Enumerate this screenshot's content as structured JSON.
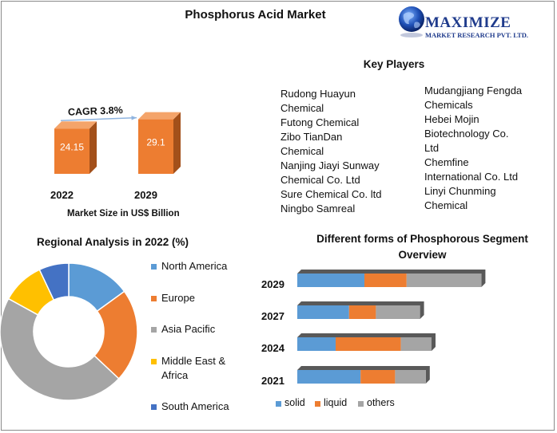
{
  "title": "Phosphorus Acid Market",
  "logo": {
    "name": "MAXIMIZE",
    "subtitle": "MARKET RESEARCH PVT. LTD."
  },
  "colors": {
    "orange": "#ed7d31",
    "orange_dark": "#a3501a",
    "blue": "#5b9bd5",
    "gray": "#a5a5a5",
    "yellow": "#ffc000",
    "darkblue": "#4472c4"
  },
  "chart_data": [
    {
      "type": "bar",
      "categories": [
        "2022",
        "2029"
      ],
      "values": [
        24.15,
        29.1
      ],
      "value_labels": [
        "24.15",
        "29.1"
      ],
      "xlabel": "Market Size in US$ Billion",
      "annotation": "CAGR 3.8%"
    },
    {
      "type": "pie",
      "title": "Regional Analysis in 2022 (%)",
      "labels": [
        "North America",
        "Europe",
        "Asia Pacific",
        "Middle East & Africa",
        "South America"
      ],
      "values": [
        15,
        22,
        46,
        10,
        7
      ],
      "colors": [
        "#5b9bd5",
        "#ed7d31",
        "#a5a5a5",
        "#ffc000",
        "#4472c4"
      ]
    },
    {
      "type": "bar",
      "orientation": "horizontal",
      "stacked": true,
      "title": "Different forms of Phosphorous Segment Overview",
      "categories": [
        "2029",
        "2027",
        "2024",
        "2021"
      ],
      "series": [
        {
          "name": "solid",
          "values": [
            35,
            27,
            20,
            33
          ],
          "color": "#5b9bd5"
        },
        {
          "name": "liquid",
          "values": [
            22,
            14,
            34,
            18
          ],
          "color": "#ed7d31"
        },
        {
          "name": "others",
          "values": [
            39,
            23,
            16,
            16
          ],
          "color": "#a5a5a5"
        }
      ]
    }
  ],
  "key_players": {
    "heading": "Key Players",
    "left": [
      "Rudong Huayun",
      "Chemical",
      "Futong Chemical",
      "Zibo TianDan",
      "Chemical",
      "Nanjing Jiayi Sunway",
      "Chemical Co. Ltd",
      "Sure Chemical Co. ltd",
      "Ningbo Samreal"
    ],
    "right": [
      "Mudangjiang Fengda",
      "Chemicals",
      "Hebei Mojin",
      "Biotechnology Co.",
      "Ltd",
      "Chemfine",
      "International Co. Ltd",
      "Linyi Chunming",
      "Chemical"
    ]
  },
  "region_legend": [
    {
      "lines": [
        "North America"
      ],
      "color": "#5b9bd5"
    },
    {
      "lines": [
        "Europe"
      ],
      "color": "#ed7d31"
    },
    {
      "lines": [
        "Asia Pacific"
      ],
      "color": "#a5a5a5"
    },
    {
      "lines": [
        "Middle East &",
        "Africa"
      ],
      "color": "#ffc000"
    },
    {
      "lines": [
        "South America"
      ],
      "color": "#4472c4"
    }
  ]
}
